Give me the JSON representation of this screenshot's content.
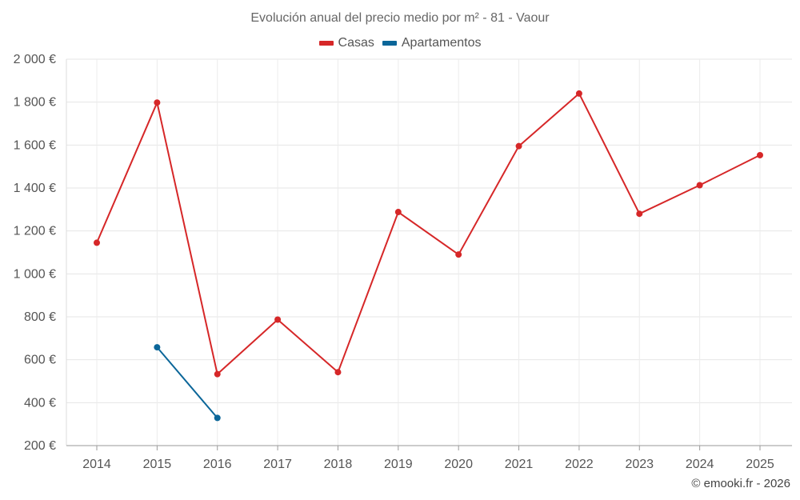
{
  "chart_data": {
    "type": "line",
    "title": "Evolución anual del precio medio por m² - 81 - Vaour",
    "xlabel": "",
    "ylabel": "",
    "categories": [
      "2014",
      "2015",
      "2016",
      "2017",
      "2018",
      "2019",
      "2020",
      "2021",
      "2022",
      "2023",
      "2024",
      "2025"
    ],
    "y_ticks": [
      200,
      400,
      600,
      800,
      1000,
      1200,
      1400,
      1600,
      1800,
      2000
    ],
    "y_tick_labels": [
      "200 €",
      "400 €",
      "600 €",
      "800 €",
      "1 000 €",
      "1 200 €",
      "1 400 €",
      "1 600 €",
      "1 800 €",
      "2 000 €"
    ],
    "ylim": [
      200,
      2000
    ],
    "grid": true,
    "legend_position": "top-center",
    "series": [
      {
        "name": "Casas",
        "color": "#d62728",
        "values": [
          1145,
          1798,
          533,
          787,
          542,
          1288,
          1090,
          1595,
          1840,
          1280,
          1413,
          1553
        ]
      },
      {
        "name": "Apartamentos",
        "color": "#0b6699",
        "values": [
          null,
          658,
          329,
          null,
          null,
          null,
          null,
          null,
          null,
          null,
          null,
          null
        ]
      }
    ]
  },
  "credit": "© emooki.fr - 2026"
}
